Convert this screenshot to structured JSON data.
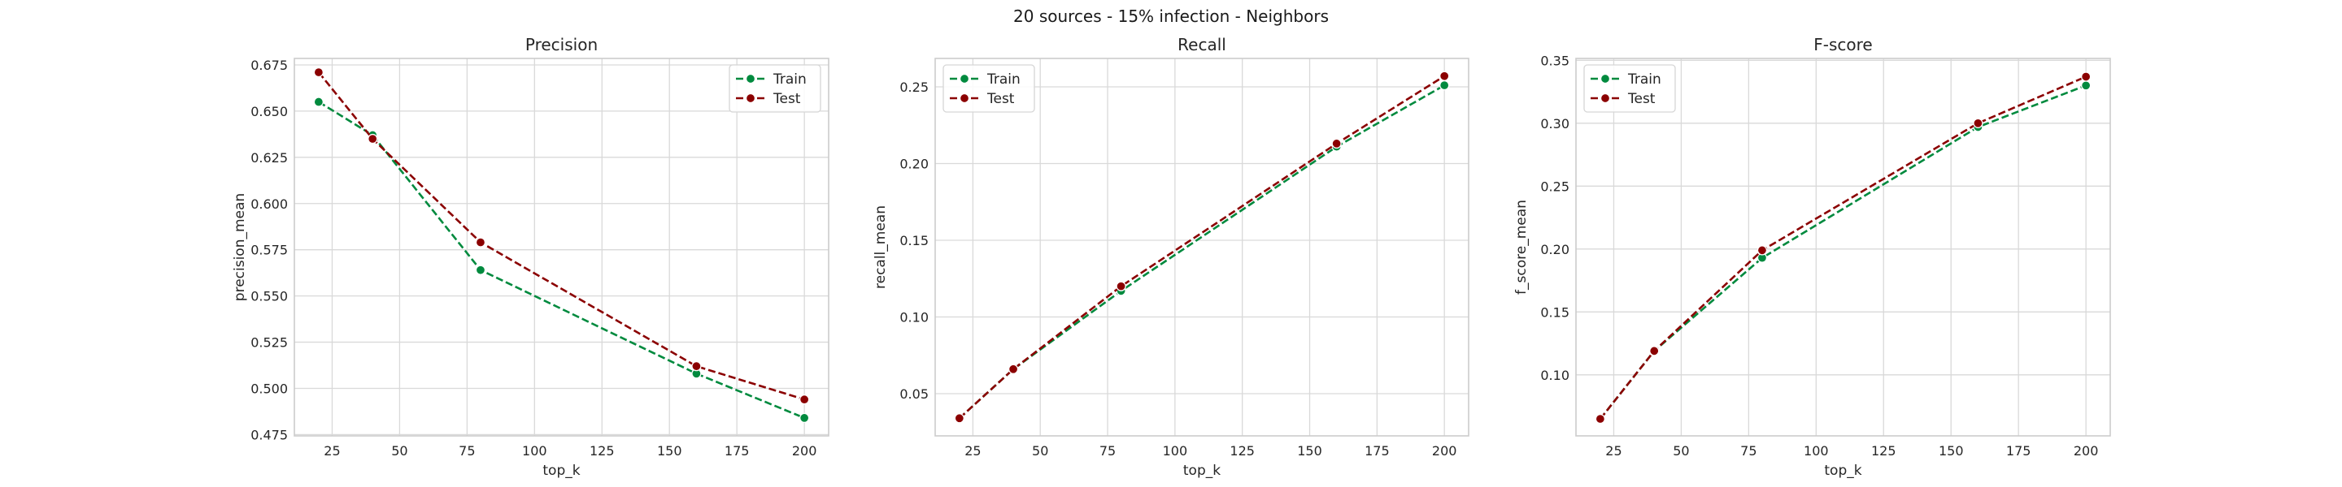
{
  "suptitle": "20 sources - 15% infection - Neighbors",
  "colors": {
    "train": "#008a3e",
    "test": "#8b0000",
    "grid": "#d9d9d9",
    "axes": "#cccccc",
    "text": "#262626"
  },
  "chart_data": [
    {
      "type": "line",
      "title": "Precision",
      "xlabel": "top_k",
      "ylabel": "precision_mean",
      "x": [
        20,
        40,
        80,
        160,
        200
      ],
      "xticks": [
        25,
        50,
        75,
        100,
        125,
        150,
        175,
        200
      ],
      "xtick_labels": [
        "25",
        "50",
        "75",
        "100",
        "125",
        "150",
        "175",
        "200"
      ],
      "xlim": [
        11,
        209
      ],
      "ylim": [
        0.4743,
        0.6785
      ],
      "yticks": [
        0.475,
        0.5,
        0.525,
        0.55,
        0.575,
        0.6,
        0.625,
        0.65,
        0.675
      ],
      "ytick_labels": [
        "0.475",
        "0.500",
        "0.525",
        "0.550",
        "0.575",
        "0.600",
        "0.625",
        "0.650",
        "0.675"
      ],
      "grid": true,
      "legend_position": "upper right",
      "series": [
        {
          "name": "Train",
          "color": "#008a3e",
          "values": [
            0.655,
            0.637,
            0.564,
            0.508,
            0.484
          ]
        },
        {
          "name": "Test",
          "color": "#8b0000",
          "values": [
            0.671,
            0.635,
            0.579,
            0.512,
            0.494
          ]
        }
      ]
    },
    {
      "type": "line",
      "title": "Recall",
      "xlabel": "top_k",
      "ylabel": "recall_mean",
      "x": [
        20,
        40,
        80,
        160,
        200
      ],
      "xticks": [
        25,
        50,
        75,
        100,
        125,
        150,
        175,
        200
      ],
      "xtick_labels": [
        "25",
        "50",
        "75",
        "100",
        "125",
        "150",
        "175",
        "200"
      ],
      "xlim": [
        11,
        209
      ],
      "ylim": [
        0.0225,
        0.2685
      ],
      "yticks": [
        0.05,
        0.1,
        0.15,
        0.2,
        0.25
      ],
      "ytick_labels": [
        "0.05",
        "0.10",
        "0.15",
        "0.20",
        "0.25"
      ],
      "grid": true,
      "legend_position": "upper left",
      "series": [
        {
          "name": "Train",
          "color": "#008a3e",
          "values": [
            0.034,
            0.066,
            0.117,
            0.211,
            0.251
          ]
        },
        {
          "name": "Test",
          "color": "#8b0000",
          "values": [
            0.034,
            0.066,
            0.12,
            0.213,
            0.257
          ]
        }
      ]
    },
    {
      "type": "line",
      "title": "F-score",
      "xlabel": "top_k",
      "ylabel": "f_score_mean",
      "x": [
        20,
        40,
        80,
        160,
        200
      ],
      "xticks": [
        25,
        50,
        75,
        100,
        125,
        150,
        175,
        200
      ],
      "xtick_labels": [
        "25",
        "50",
        "75",
        "100",
        "125",
        "150",
        "175",
        "200"
      ],
      "xlim": [
        11,
        209
      ],
      "ylim": [
        0.0515,
        0.3515
      ],
      "yticks": [
        0.1,
        0.15,
        0.2,
        0.25,
        0.3,
        0.35
      ],
      "ytick_labels": [
        "0.10",
        "0.15",
        "0.20",
        "0.25",
        "0.30",
        "0.35"
      ],
      "grid": true,
      "legend_position": "upper left",
      "series": [
        {
          "name": "Train",
          "color": "#008a3e",
          "values": [
            0.065,
            0.119,
            0.193,
            0.297,
            0.33
          ]
        },
        {
          "name": "Test",
          "color": "#8b0000",
          "values": [
            0.065,
            0.119,
            0.199,
            0.3,
            0.337
          ]
        }
      ]
    }
  ]
}
